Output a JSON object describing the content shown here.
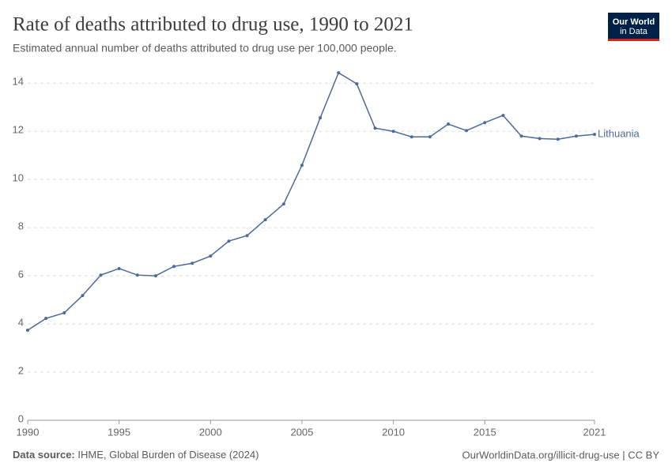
{
  "chart_data": {
    "type": "line",
    "title": "Rate of deaths attributed to drug use, 1990 to 2021",
    "subtitle": "Estimated annual number of deaths attributed to drug use per 100,000 people.",
    "logo": [
      "Our World",
      "in Data"
    ],
    "source_label": "Data source:",
    "source": "IHME, Global Burden of Disease (2024)",
    "credit": "OurWorldinData.org/illicit-drug-use | CC BY",
    "x": [
      1990,
      1991,
      1992,
      1993,
      1994,
      1995,
      1996,
      1997,
      1998,
      1999,
      2000,
      2001,
      2002,
      2003,
      2004,
      2005,
      2006,
      2007,
      2008,
      2009,
      2010,
      2011,
      2012,
      2013,
      2014,
      2015,
      2016,
      2017,
      2018,
      2019,
      2020,
      2021
    ],
    "series": [
      {
        "name": "Lithuania",
        "color": "#4c6a9c",
        "values": [
          3.74,
          4.23,
          4.46,
          5.18,
          6.03,
          6.3,
          6.03,
          6.0,
          6.39,
          6.52,
          6.82,
          7.44,
          7.67,
          8.33,
          8.98,
          10.59,
          12.56,
          14.43,
          13.97,
          12.13,
          12.0,
          11.77,
          11.77,
          12.3,
          12.03,
          12.36,
          12.66,
          11.8,
          11.7,
          11.67,
          11.8,
          11.87
        ]
      }
    ],
    "xlim": [
      1990,
      2021
    ],
    "xticks": [
      1990,
      1995,
      2000,
      2005,
      2010,
      2015,
      2021
    ],
    "ylim": [
      0,
      14.5
    ],
    "yticks": [
      0,
      2,
      4,
      6,
      8,
      10,
      12,
      14
    ],
    "grid": true
  }
}
